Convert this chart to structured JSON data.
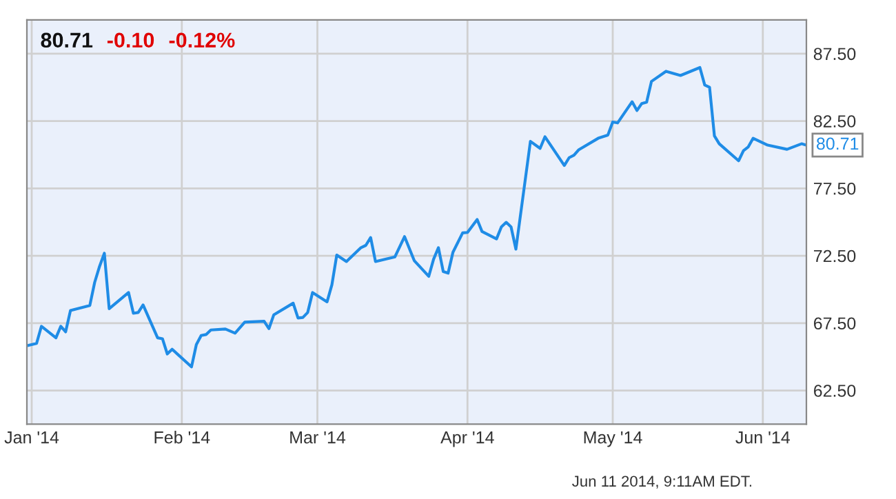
{
  "chart_data": {
    "type": "line",
    "title": "80.71",
    "annotations": [
      "-0.10",
      "-0.12%",
      "Jun 11 2014, 9:11AM EDT.",
      {
        "text": "80.71",
        "x": "2014-06-10",
        "y": 80.71
      }
    ],
    "x": [
      "2013-12-31",
      "2014-01-02",
      "2014-01-03",
      "2014-01-06",
      "2014-01-07",
      "2014-01-08",
      "2014-01-09",
      "2014-01-13",
      "2014-01-14",
      "2014-01-15",
      "2014-01-16",
      "2014-01-17",
      "2014-01-21",
      "2014-01-22",
      "2014-01-23",
      "2014-01-24",
      "2014-01-27",
      "2014-01-28",
      "2014-01-29",
      "2014-01-30",
      "2014-02-03",
      "2014-02-04",
      "2014-02-05",
      "2014-02-06",
      "2014-02-07",
      "2014-02-10",
      "2014-02-12",
      "2014-02-14",
      "2014-02-18",
      "2014-02-19",
      "2014-02-20",
      "2014-02-24",
      "2014-02-25",
      "2014-02-26",
      "2014-02-27",
      "2014-02-28",
      "2014-03-03",
      "2014-03-04",
      "2014-03-05",
      "2014-03-07",
      "2014-03-10",
      "2014-03-11",
      "2014-03-12",
      "2014-03-13",
      "2014-03-17",
      "2014-03-19",
      "2014-03-21",
      "2014-03-24",
      "2014-03-25",
      "2014-03-26",
      "2014-03-27",
      "2014-03-28",
      "2014-03-29",
      "2014-03-31",
      "2014-04-01",
      "2014-04-03",
      "2014-04-04",
      "2014-04-07",
      "2014-04-08",
      "2014-04-09",
      "2014-04-10",
      "2014-04-11",
      "2014-04-14",
      "2014-04-16",
      "2014-04-17",
      "2014-04-21",
      "2014-04-22",
      "2014-04-23",
      "2014-04-24",
      "2014-04-28",
      "2014-04-30",
      "2014-05-01",
      "2014-05-02",
      "2014-05-05",
      "2014-05-06",
      "2014-05-07",
      "2014-05-08",
      "2014-05-09",
      "2014-05-12",
      "2014-05-15",
      "2014-05-19",
      "2014-05-20",
      "2014-05-21",
      "2014-05-22",
      "2014-05-23",
      "2014-05-27",
      "2014-05-28",
      "2014-05-29",
      "2014-05-30",
      "2014-06-02",
      "2014-06-06",
      "2014-06-09",
      "2014-06-10"
    ],
    "series": [
      {
        "color": "#1f8ce6",
        "values": [
          65.82,
          65.99,
          67.26,
          66.41,
          67.26,
          66.85,
          68.43,
          68.81,
          70.52,
          71.7,
          72.69,
          68.57,
          69.77,
          68.23,
          68.29,
          68.85,
          66.41,
          66.34,
          65.21,
          65.56,
          64.25,
          65.9,
          66.58,
          66.65,
          66.99,
          67.06,
          66.75,
          67.57,
          67.64,
          67.09,
          68.12,
          68.98,
          67.88,
          67.92,
          68.29,
          69.77,
          69.08,
          70.35,
          72.55,
          72.07,
          73.1,
          73.27,
          73.85,
          72.07,
          72.41,
          73.92,
          72.14,
          70.97,
          72.24,
          73.1,
          71.32,
          71.21,
          72.76,
          74.2,
          74.23,
          75.19,
          74.3,
          73.75,
          74.64,
          74.98,
          74.64,
          72.99,
          80.99,
          80.47,
          81.33,
          79.2,
          79.78,
          79.96,
          80.37,
          81.22,
          81.46,
          82.43,
          82.36,
          83.93,
          83.28,
          83.8,
          83.9,
          85.44,
          86.19,
          85.88,
          86.47,
          85.17,
          85.0,
          81.4,
          80.81,
          79.55,
          80.3,
          80.58,
          81.22,
          80.71,
          80.4,
          80.81,
          80.71
        ]
      }
    ],
    "xlim": [
      "2013-12-31",
      "2014-06-10"
    ],
    "xticks": [
      {
        "value": "2014-01-01",
        "label": "Jan '14"
      },
      {
        "value": "2014-02-01",
        "label": "Feb '14"
      },
      {
        "value": "2014-03-01",
        "label": "Mar '14"
      },
      {
        "value": "2014-04-01",
        "label": "Apr '14"
      },
      {
        "value": "2014-05-01",
        "label": "May '14"
      },
      {
        "value": "2014-06-01",
        "label": "Jun '14"
      }
    ],
    "ylim": [
      60,
      90
    ],
    "yticks": [
      {
        "value": 62.5,
        "label": "62.50"
      },
      {
        "value": 67.5,
        "label": "67.50"
      },
      {
        "value": 72.5,
        "label": "72.50"
      },
      {
        "value": 77.5,
        "label": "77.50"
      },
      {
        "value": 82.5,
        "label": "82.50"
      },
      {
        "value": 87.5,
        "label": "87.50"
      }
    ],
    "grid": true,
    "legend": false,
    "marker": "none",
    "line_style": "solid"
  }
}
